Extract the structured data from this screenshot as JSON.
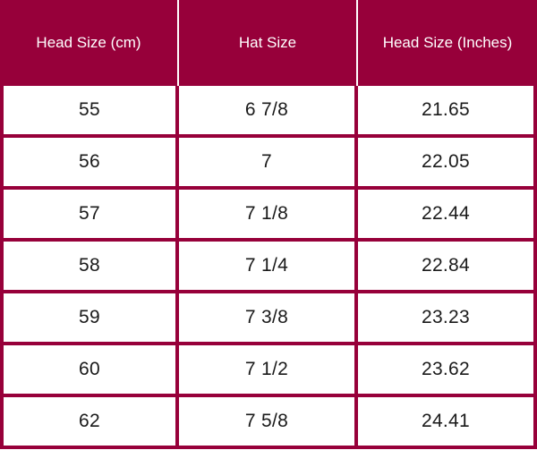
{
  "table": {
    "headers": [
      "Head Size (cm)",
      "Hat Size",
      "Head Size (Inches)"
    ],
    "rows": [
      [
        "55",
        "6 7/8",
        "21.65"
      ],
      [
        "56",
        "7",
        "22.05"
      ],
      [
        "57",
        "7 1/8",
        "22.44"
      ],
      [
        "58",
        "7 1/4",
        "22.84"
      ],
      [
        "59",
        "7 3/8",
        "23.23"
      ],
      [
        "60",
        "7 1/2",
        "23.62"
      ],
      [
        "62",
        "7 5/8",
        "24.41"
      ]
    ]
  },
  "colors": {
    "header_bg": "#97003a",
    "header_text": "#ffffff",
    "border": "#97003a",
    "cell_text": "#1a1a1a"
  }
}
